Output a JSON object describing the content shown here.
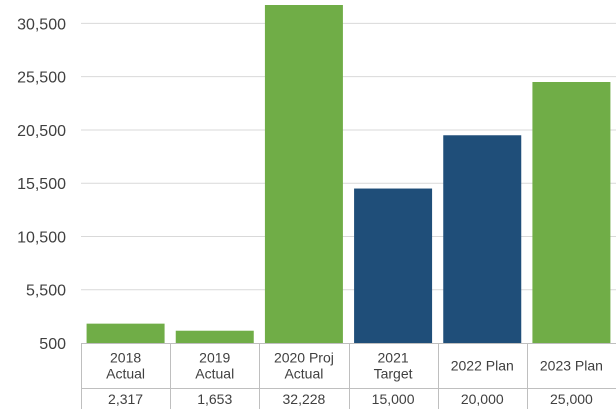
{
  "chart_data": {
    "type": "bar",
    "categories": [
      [
        "2018",
        "Actual"
      ],
      [
        "2019",
        "Actual"
      ],
      [
        "2020 Proj",
        "Actual"
      ],
      [
        "2021",
        "Target"
      ],
      [
        "2022 Plan"
      ],
      [
        "2023 Plan"
      ]
    ],
    "values": [
      2317,
      1653,
      32228,
      15000,
      20000,
      25000
    ],
    "value_labels": [
      "2,317",
      "1,653",
      "32,228",
      "15,000",
      "20,000",
      "25,000"
    ],
    "bar_colors": [
      "#70ad47",
      "#70ad47",
      "#70ad47",
      "#1f4e79",
      "#1f4e79",
      "#70ad47"
    ],
    "yticks": [
      500,
      5500,
      10500,
      15500,
      20500,
      25500,
      30500
    ],
    "ytick_labels": [
      "500",
      "5,500",
      "10,500",
      "15,500",
      "20,500",
      "25,500",
      "30,500"
    ],
    "ylim": [
      500,
      32228
    ],
    "grid": true,
    "legend": "none",
    "data_table": true,
    "colors": {
      "gridline": "#d9d9d9",
      "axis": "#bfbfbf",
      "text": "#404040"
    }
  }
}
